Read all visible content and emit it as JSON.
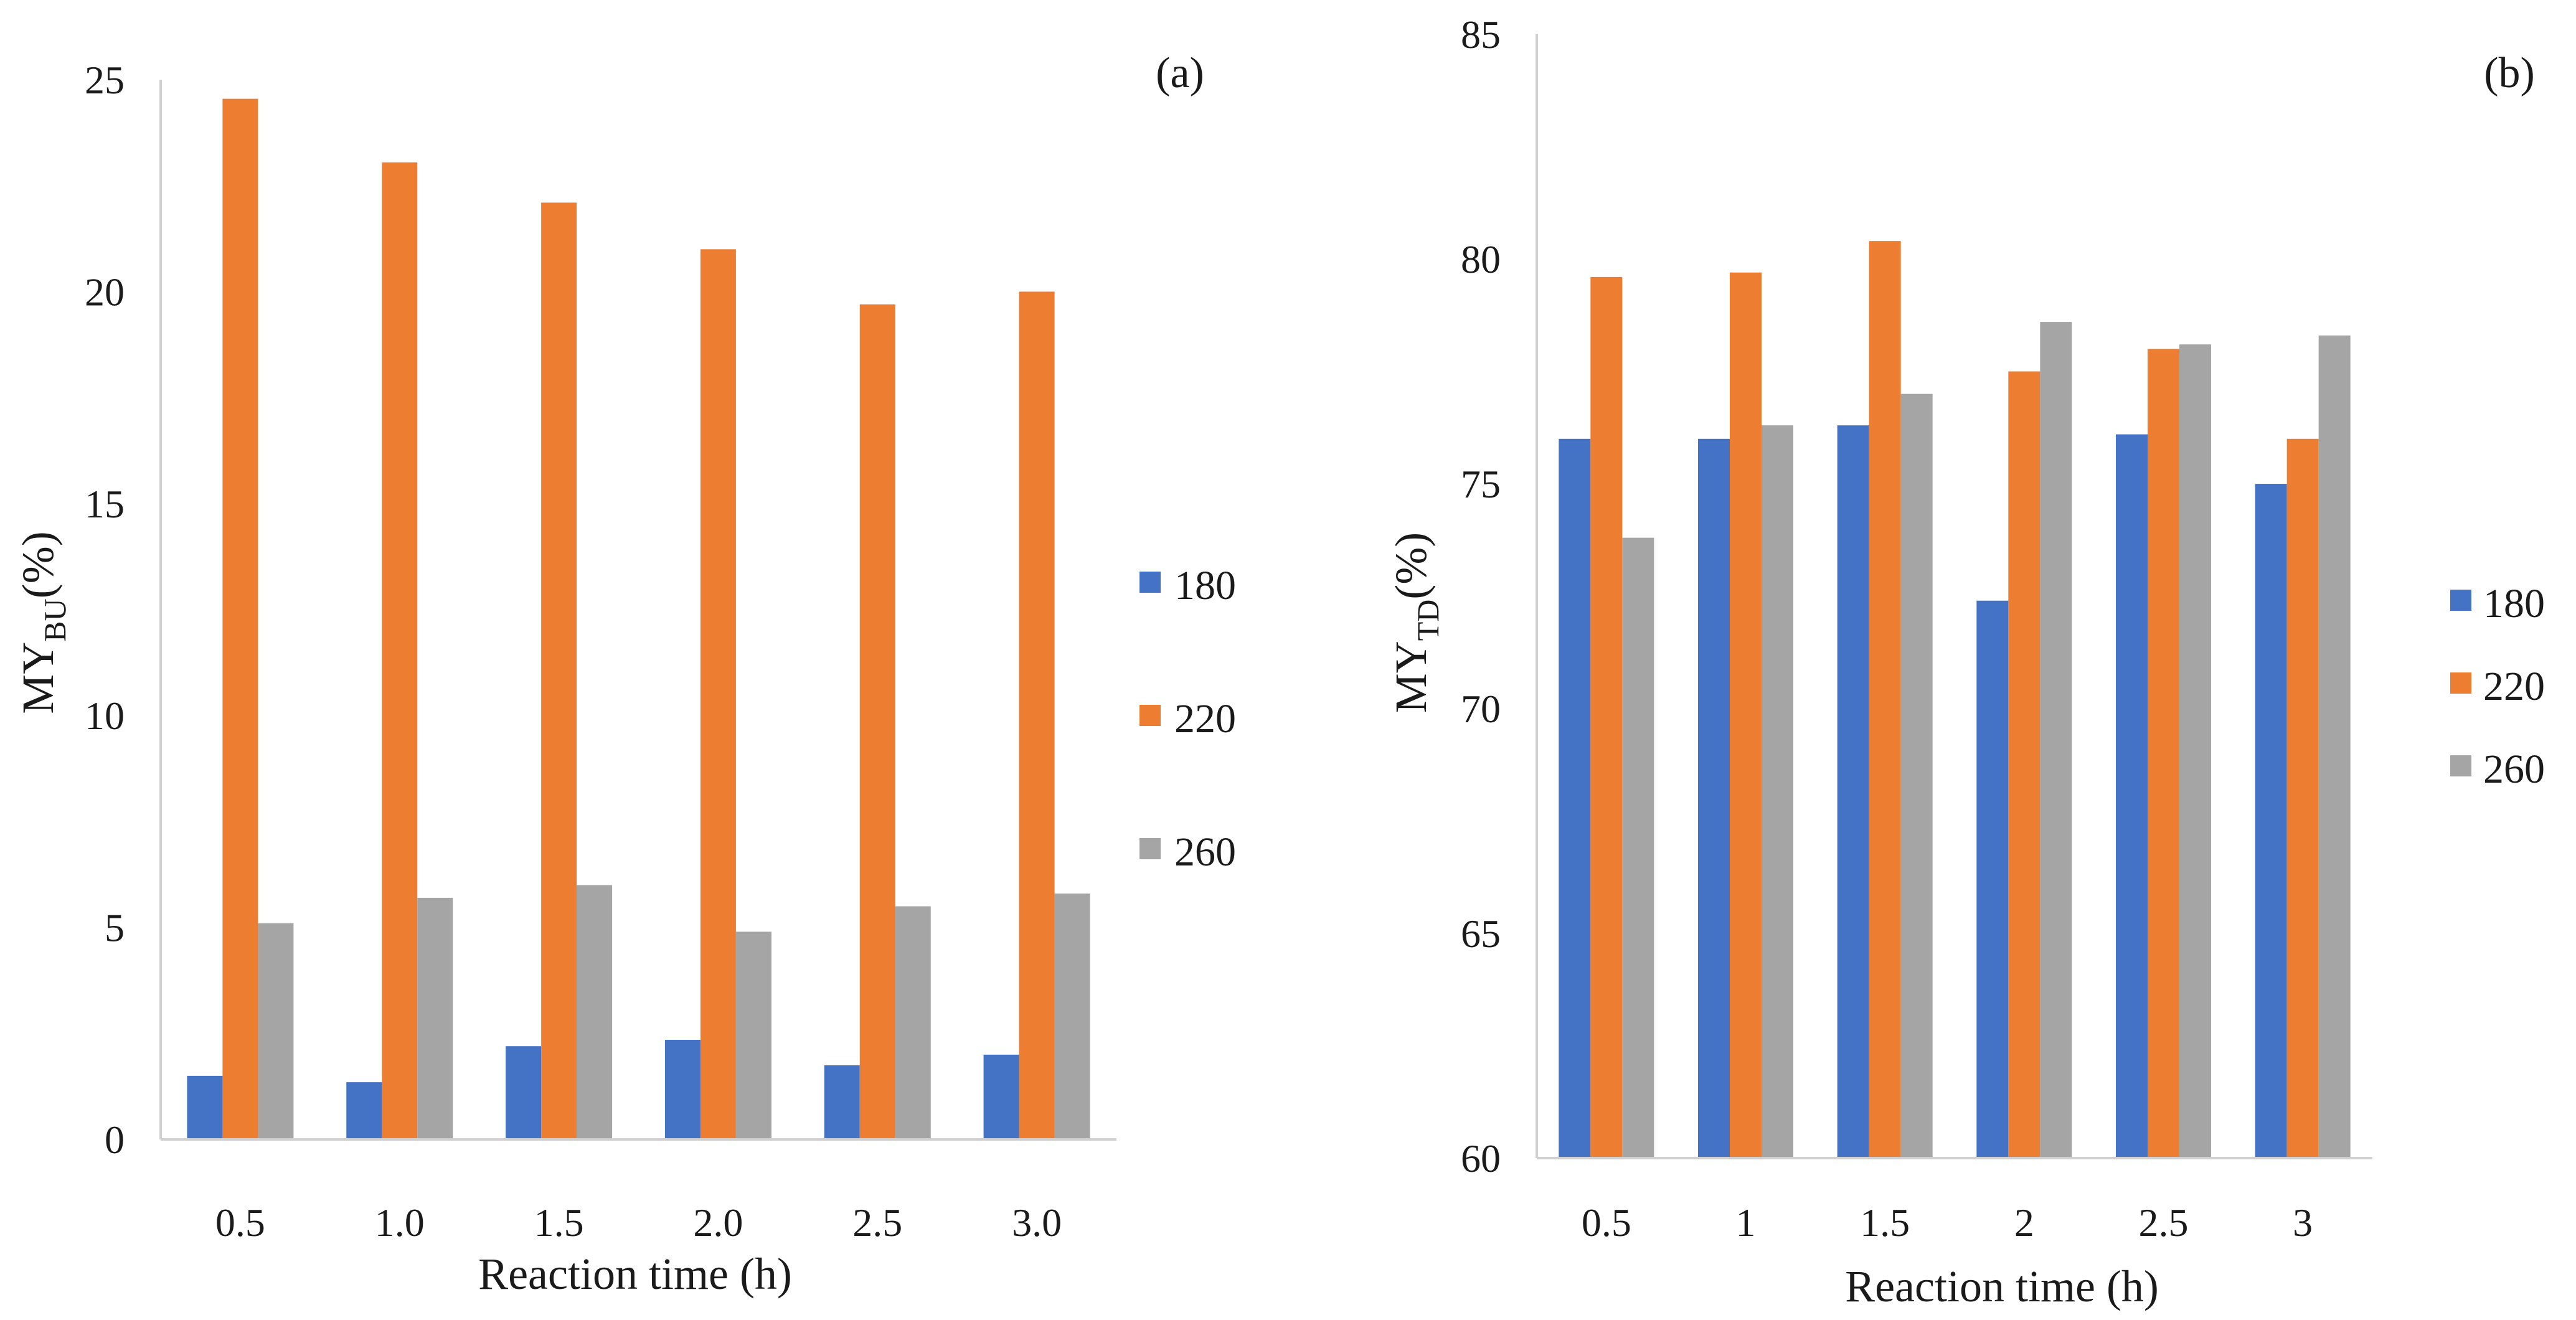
{
  "chart_data": [
    {
      "type": "bar",
      "panel_label": "(a)",
      "categories": [
        "0.5",
        "1.0",
        "1.5",
        "2.0",
        "2.5",
        "3.0"
      ],
      "series": [
        {
          "name": "180",
          "color": "#4472c4",
          "values": [
            1.5,
            1.35,
            2.2,
            2.35,
            1.75,
            2.0
          ]
        },
        {
          "name": "220",
          "color": "#ed7d31",
          "values": [
            24.55,
            23.05,
            22.1,
            21.0,
            19.7,
            20.0
          ]
        },
        {
          "name": "260",
          "color": "#a5a5a5",
          "values": [
            5.1,
            5.7,
            6.0,
            4.9,
            5.5,
            5.8
          ]
        }
      ],
      "xlabel": "Reaction time (h)",
      "ylabel": {
        "main": "MY",
        "sub": "BU",
        "suffix": "(%)"
      },
      "ylim": [
        0,
        25
      ],
      "yticks": [
        "0",
        "5",
        "10",
        "15",
        "20",
        "25"
      ],
      "legend_position": "right"
    },
    {
      "type": "bar",
      "panel_label": "(b)",
      "categories": [
        "0.5",
        "1",
        "1.5",
        "2",
        "2.5",
        "3"
      ],
      "series": [
        {
          "name": "180",
          "color": "#4472c4",
          "values": [
            76.0,
            76.0,
            76.3,
            72.4,
            76.1,
            75.0
          ]
        },
        {
          "name": "220",
          "color": "#ed7d31",
          "values": [
            79.6,
            79.7,
            80.4,
            77.5,
            78.0,
            76.0
          ]
        },
        {
          "name": "260",
          "color": "#a5a5a5",
          "values": [
            73.8,
            76.3,
            77.0,
            78.6,
            78.1,
            78.3
          ]
        }
      ],
      "xlabel": "Reaction time (h)",
      "ylabel": {
        "main": "MY",
        "sub": "TD",
        "suffix": "(%)"
      },
      "ylim": [
        60,
        85
      ],
      "yticks": [
        "60",
        "65",
        "70",
        "75",
        "80",
        "85"
      ],
      "legend_position": "right"
    }
  ]
}
